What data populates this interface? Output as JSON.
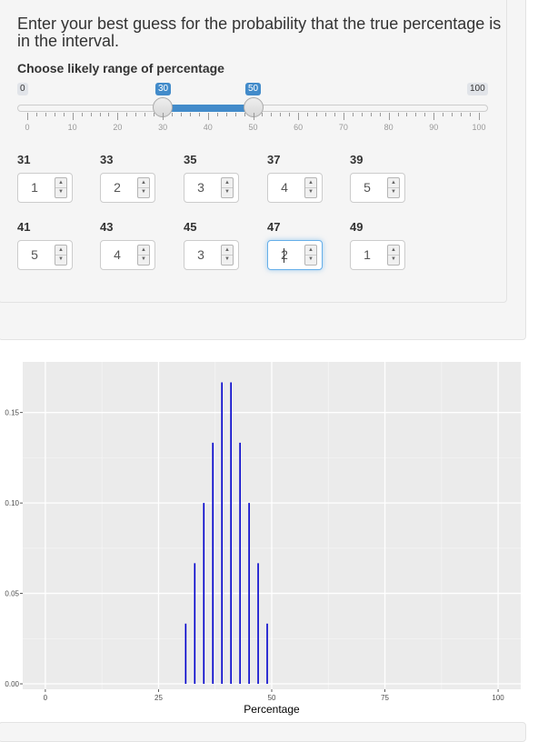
{
  "prompt": {
    "title": "Enter your best guess for the probability that the true percentage is in the interval.",
    "range_label": "Choose likely range of percentage"
  },
  "slider": {
    "min_label": "0",
    "max_label": "100",
    "from_label": "30",
    "to_label": "50",
    "min": 0,
    "max": 100,
    "from": 30,
    "to": 50,
    "tick_labels": [
      "0",
      "10",
      "20",
      "30",
      "40",
      "50",
      "60",
      "70",
      "80",
      "90",
      "100"
    ],
    "accent": "#428bca"
  },
  "inputs": [
    {
      "label": "31",
      "value": "1"
    },
    {
      "label": "33",
      "value": "2"
    },
    {
      "label": "35",
      "value": "3"
    },
    {
      "label": "37",
      "value": "4"
    },
    {
      "label": "39",
      "value": "5"
    },
    {
      "label": "41",
      "value": "5"
    },
    {
      "label": "43",
      "value": "4"
    },
    {
      "label": "45",
      "value": "3"
    },
    {
      "label": "47",
      "value": "2"
    },
    {
      "label": "49",
      "value": "1"
    }
  ],
  "chart_data": {
    "type": "bar",
    "xlabel": "Percentage",
    "ylabel": "",
    "xlim": [
      -5,
      105
    ],
    "ylim": [
      -0.003,
      0.178
    ],
    "x_ticks": [
      0,
      25,
      50,
      75,
      100
    ],
    "x_tick_labels": [
      "0",
      "25",
      "50",
      "75",
      "100"
    ],
    "y_ticks": [
      0.0,
      0.05,
      0.1,
      0.15
    ],
    "y_tick_labels": [
      "0.00",
      "0.05",
      "0.10",
      "0.15"
    ],
    "grid": true,
    "line_color": "#0000cc",
    "x": [
      31,
      33,
      35,
      37,
      39,
      41,
      43,
      45,
      47,
      49
    ],
    "values": [
      0.0333,
      0.0667,
      0.1,
      0.1333,
      0.1667,
      0.1667,
      0.1333,
      0.1,
      0.0667,
      0.0333
    ]
  }
}
